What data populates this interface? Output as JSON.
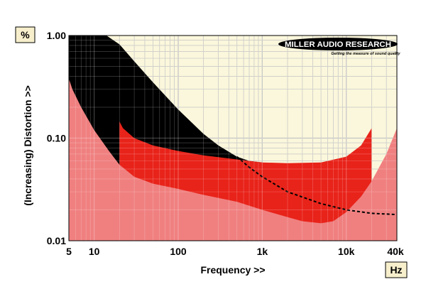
{
  "chart_data": {
    "type": "area",
    "xscale": "log",
    "yscale": "log",
    "xlim": [
      5,
      40000
    ],
    "ylim": [
      0.01,
      1.0
    ],
    "grid": true,
    "xlabel": "Frequency >>",
    "ylabel": "(Increasing) Distortion >>",
    "x_unit": "Hz",
    "y_unit": "%",
    "x_ticks": [
      {
        "value": 5,
        "label": "5"
      },
      {
        "value": 10,
        "label": "10"
      },
      {
        "value": 100,
        "label": "100"
      },
      {
        "value": 1000,
        "label": "1k"
      },
      {
        "value": 10000,
        "label": "10k"
      },
      {
        "value": 40000,
        "label": "40k"
      }
    ],
    "y_ticks": [
      {
        "value": 1.0,
        "label": "1.00"
      },
      {
        "value": 0.1,
        "label": "0.10"
      },
      {
        "value": 0.01,
        "label": "0.01"
      }
    ],
    "series": [
      {
        "color": "#000000",
        "x": [
          5,
          7,
          10,
          14,
          20,
          30,
          50,
          100,
          200,
          300,
          500,
          700,
          1000
        ],
        "y": [
          1.0,
          1.0,
          1.0,
          1.0,
          0.82,
          0.56,
          0.35,
          0.19,
          0.11,
          0.085,
          0.066,
          0.06,
          0.058
        ]
      },
      {
        "color": "#e8231a",
        "x": [
          20,
          22,
          30,
          50,
          100,
          200,
          500,
          1000,
          2000,
          5000,
          10000,
          15000,
          20000
        ],
        "y": [
          0.145,
          0.125,
          0.1,
          0.085,
          0.075,
          0.068,
          0.062,
          0.058,
          0.057,
          0.058,
          0.066,
          0.085,
          0.125
        ]
      },
      {
        "color": "#f08080",
        "x": [
          5,
          5.5,
          7,
          10,
          15,
          20,
          30,
          50,
          100,
          200,
          500,
          1000,
          2000,
          3000,
          5000,
          7000,
          10000,
          15000,
          20000,
          30000,
          40000
        ],
        "y": [
          0.38,
          0.3,
          0.2,
          0.12,
          0.075,
          0.055,
          0.042,
          0.036,
          0.032,
          0.028,
          0.024,
          0.02,
          0.017,
          0.0155,
          0.0148,
          0.0155,
          0.019,
          0.027,
          0.038,
          0.07,
          0.125
        ]
      }
    ],
    "reference_line": {
      "style": "dashed",
      "color": "#000000",
      "x": [
        500,
        700,
        1000,
        2000,
        5000,
        10000,
        20000,
        40000
      ],
      "y": [
        0.066,
        0.052,
        0.042,
        0.03,
        0.023,
        0.02,
        0.0185,
        0.018
      ]
    }
  },
  "logo": {
    "brand": "MILLER AUDIO RESEARCH",
    "tagline": "Getting the measure of sound quality"
  },
  "colors": {
    "plot_background": "#fbf7dc",
    "grid": "#b5b5b5",
    "unit_box_fill": "#f7efcc"
  }
}
